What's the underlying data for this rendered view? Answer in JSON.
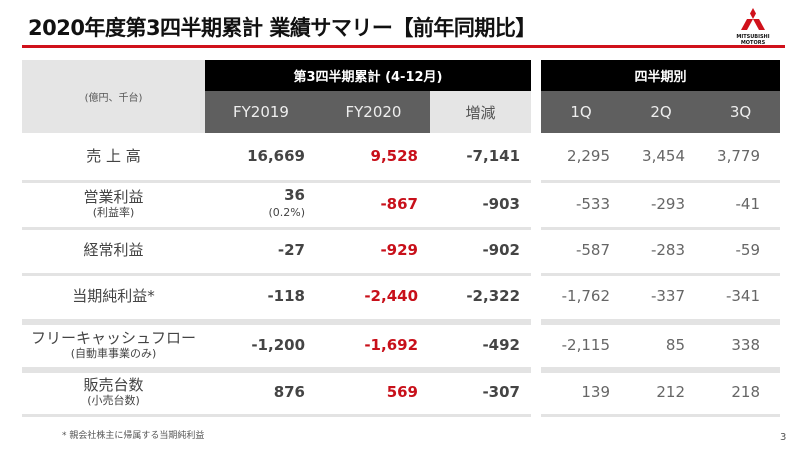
{
  "title": "2020年度第3四半期累計 業績サマリー【前年同期比】",
  "logo_text": "MITSUBISHI MOTORS",
  "colors": {
    "accent_red": "#d0111b",
    "header_black": "#000000",
    "header_grey": "#5f5f5f"
  },
  "table": {
    "unit": "(億円、千台)",
    "group_cumulative": "第3四半期累計 (4-12月)",
    "group_quarterly": "四半期別",
    "columns": [
      "FY2019",
      "FY2020",
      "増減",
      "1Q",
      "2Q",
      "3Q"
    ],
    "rows": [
      {
        "label": "売 上 高",
        "sub": "",
        "fy2019": "16,669",
        "fy2019_sub": "",
        "fy2020": "9,528",
        "change": "-7,141",
        "q1": "2,295",
        "q2": "3,454",
        "q3": "3,779"
      },
      {
        "label": "営業利益",
        "sub": "(利益率)",
        "fy2019": "36",
        "fy2019_sub": "(0.2%)",
        "fy2020": "-867",
        "change": "-903",
        "q1": "-533",
        "q2": "-293",
        "q3": "-41"
      },
      {
        "label": "経常利益",
        "sub": "",
        "fy2019": "-27",
        "fy2019_sub": "",
        "fy2020": "-929",
        "change": "-902",
        "q1": "-587",
        "q2": "-283",
        "q3": "-59"
      },
      {
        "label": "当期純利益*",
        "sub": "",
        "fy2019": "-118",
        "fy2019_sub": "",
        "fy2020": "-2,440",
        "change": "-2,322",
        "q1": "-1,762",
        "q2": "-337",
        "q3": "-341"
      },
      {
        "label": "フリーキャッシュフロー",
        "sub": "(自動車事業のみ)",
        "fy2019": "-1,200",
        "fy2019_sub": "",
        "fy2020": "-1,692",
        "change": "-492",
        "q1": "-2,115",
        "q2": "85",
        "q3": "338"
      },
      {
        "label": "販売台数",
        "sub": "(小売台数)",
        "fy2019": "876",
        "fy2019_sub": "",
        "fy2020": "569",
        "change": "-307",
        "q1": "139",
        "q2": "212",
        "q3": "218"
      }
    ]
  },
  "footnote": "* 親会社株主に帰属する当期純利益",
  "page_number": "3"
}
